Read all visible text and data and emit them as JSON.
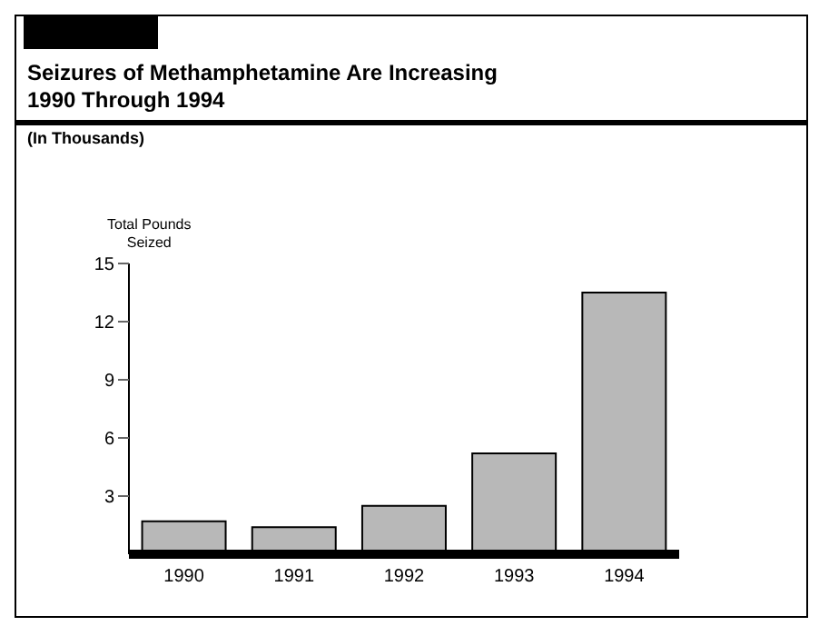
{
  "chart_data": {
    "type": "bar",
    "title": "Seizures of Methamphetamine Are Increasing\n1990 Through 1994",
    "subtitle": "(In Thousands)",
    "ylabel": "Total Pounds\nSeized",
    "categories": [
      "1990",
      "1991",
      "1992",
      "1993",
      "1994"
    ],
    "values": [
      1.7,
      1.4,
      2.5,
      5.2,
      13.5
    ],
    "color": "#b8b8b8",
    "ylim": [
      0,
      15
    ],
    "yticks": [
      3,
      6,
      9,
      12,
      15
    ],
    "grid": false,
    "legend": false
  }
}
